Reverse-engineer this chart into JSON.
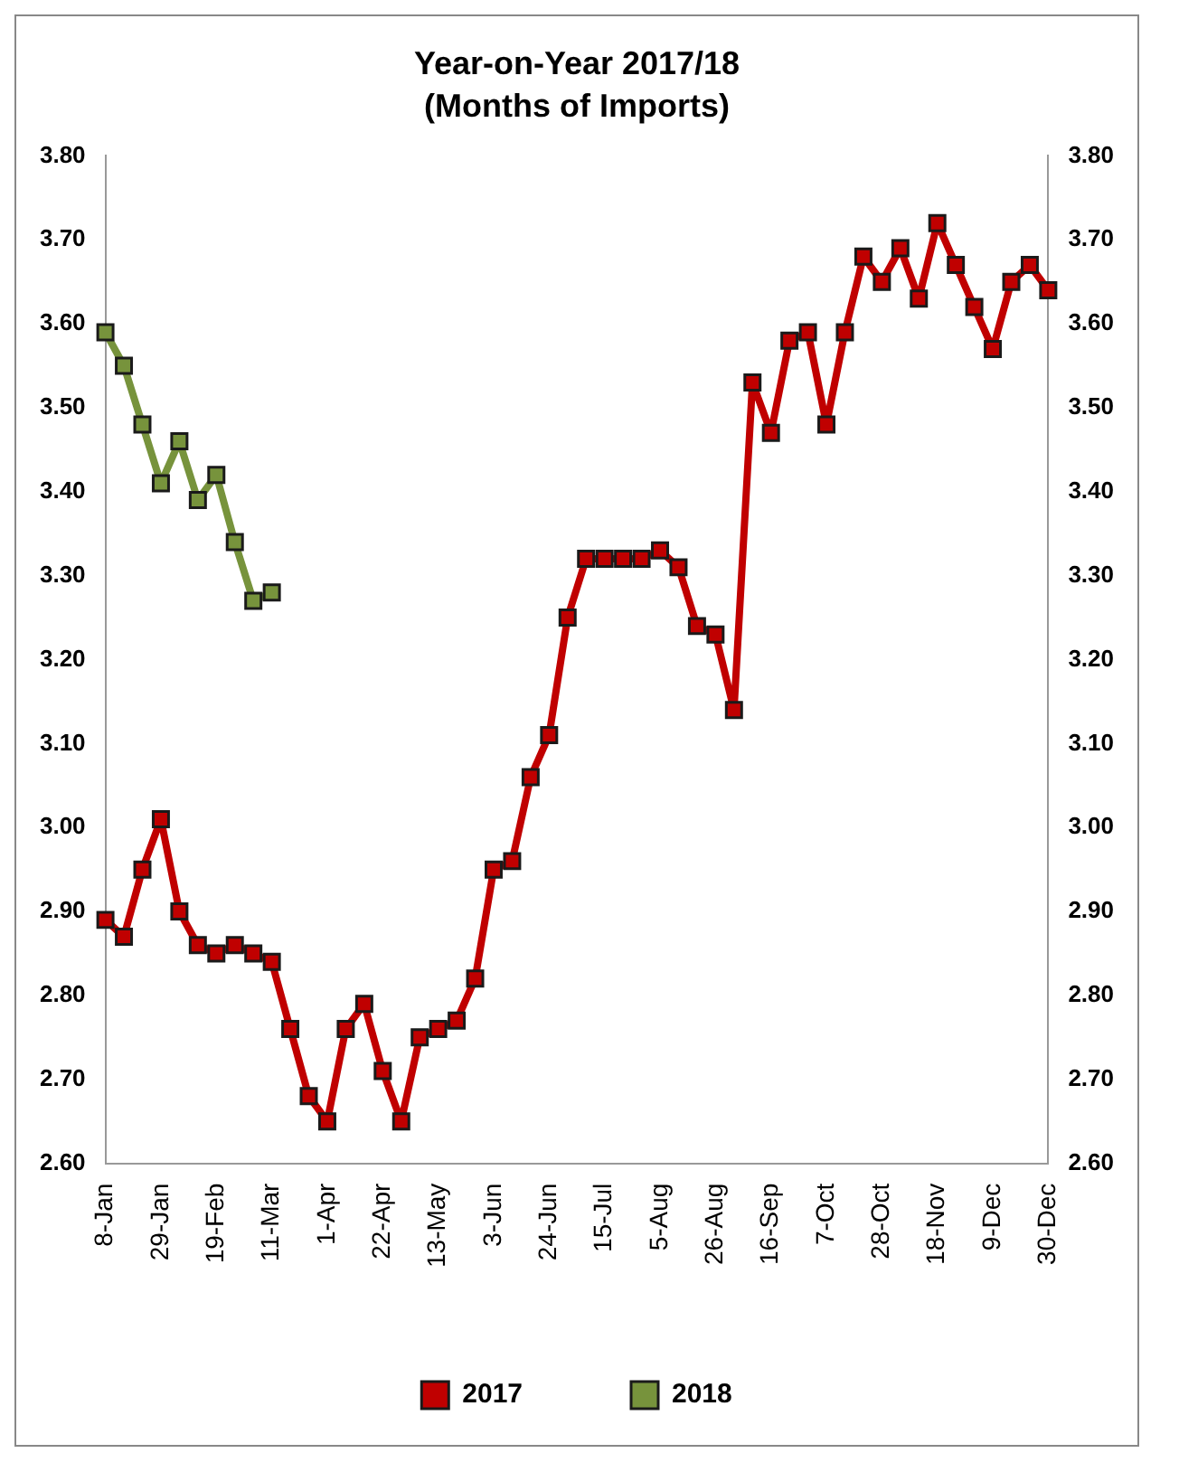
{
  "chart_data": {
    "type": "line",
    "title": "Year-on-Year 2017/18",
    "subtitle": "(Months of Imports)",
    "categories": [
      "8-Jan",
      null,
      null,
      "29-Jan",
      null,
      null,
      "19-Feb",
      null,
      null,
      "11-Mar",
      null,
      null,
      "1-Apr",
      null,
      null,
      "22-Apr",
      null,
      null,
      "13-May",
      null,
      null,
      "3-Jun",
      null,
      null,
      "24-Jun",
      null,
      null,
      "15-Jul",
      null,
      null,
      "5-Aug",
      null,
      null,
      "26-Aug",
      null,
      null,
      "16-Sep",
      null,
      null,
      "7-Oct",
      null,
      null,
      "28-Oct",
      null,
      null,
      "18-Nov",
      null,
      null,
      "9-Dec",
      null,
      null,
      "30-Dec"
    ],
    "series": [
      {
        "name": "2017",
        "color": "#c00000",
        "values": [
          2.89,
          2.87,
          2.95,
          3.01,
          2.9,
          2.86,
          2.85,
          2.86,
          2.85,
          2.84,
          2.76,
          2.68,
          2.65,
          2.76,
          2.79,
          2.71,
          2.65,
          2.75,
          2.76,
          2.77,
          2.82,
          2.95,
          2.96,
          3.06,
          3.11,
          3.25,
          3.32,
          3.32,
          3.32,
          3.32,
          3.33,
          3.31,
          3.24,
          3.23,
          3.14,
          3.53,
          3.47,
          3.58,
          3.59,
          3.48,
          3.59,
          3.68,
          3.65,
          3.69,
          3.63,
          3.72,
          3.67,
          3.62,
          3.57,
          3.65,
          3.67,
          3.64
        ]
      },
      {
        "name": "2018",
        "color": "#77933c",
        "values": [
          3.59,
          3.55,
          3.48,
          3.41,
          3.46,
          3.39,
          3.42,
          3.34,
          3.27,
          3.28,
          null,
          null,
          null,
          null,
          null,
          null,
          null,
          null,
          null,
          null,
          null,
          null,
          null,
          null,
          null,
          null,
          null,
          null,
          null,
          null,
          null,
          null,
          null,
          null,
          null,
          null,
          null,
          null,
          null,
          null,
          null,
          null,
          null,
          null,
          null,
          null,
          null,
          null,
          null,
          null,
          null,
          null
        ]
      }
    ],
    "ylim": [
      2.6,
      3.8
    ],
    "yticks": [
      {
        "value": 2.6,
        "label": "2.60"
      },
      {
        "value": 2.7,
        "label": "2.70"
      },
      {
        "value": 2.8,
        "label": "2.80"
      },
      {
        "value": 2.9,
        "label": "2.90"
      },
      {
        "value": 3.0,
        "label": "3.00"
      },
      {
        "value": 3.1,
        "label": "3.10"
      },
      {
        "value": 3.2,
        "label": "3.20"
      },
      {
        "value": 3.3,
        "label": "3.30"
      },
      {
        "value": 3.4,
        "label": "3.40"
      },
      {
        "value": 3.5,
        "label": "3.50"
      },
      {
        "value": 3.6,
        "label": "3.60"
      },
      {
        "value": 3.7,
        "label": "3.70"
      },
      {
        "value": 3.8,
        "label": "3.80"
      }
    ],
    "y2lim": [
      2.6,
      3.8
    ],
    "y2ticks": [
      {
        "value": 2.6,
        "label": "2.60"
      },
      {
        "value": 2.7,
        "label": "2.70"
      },
      {
        "value": 2.8,
        "label": "2.80"
      },
      {
        "value": 2.9,
        "label": "2.90"
      },
      {
        "value": 3.0,
        "label": "3.00"
      },
      {
        "value": 3.1,
        "label": "3.10"
      },
      {
        "value": 3.2,
        "label": "3.20"
      },
      {
        "value": 3.3,
        "label": "3.30"
      },
      {
        "value": 3.4,
        "label": "3.40"
      },
      {
        "value": 3.5,
        "label": "3.50"
      },
      {
        "value": 3.6,
        "label": "3.60"
      },
      {
        "value": 3.7,
        "label": "3.70"
      },
      {
        "value": 3.8,
        "label": "3.80"
      }
    ],
    "grid": false,
    "legend": "bottom",
    "marker": "square",
    "line_style": "solid"
  }
}
